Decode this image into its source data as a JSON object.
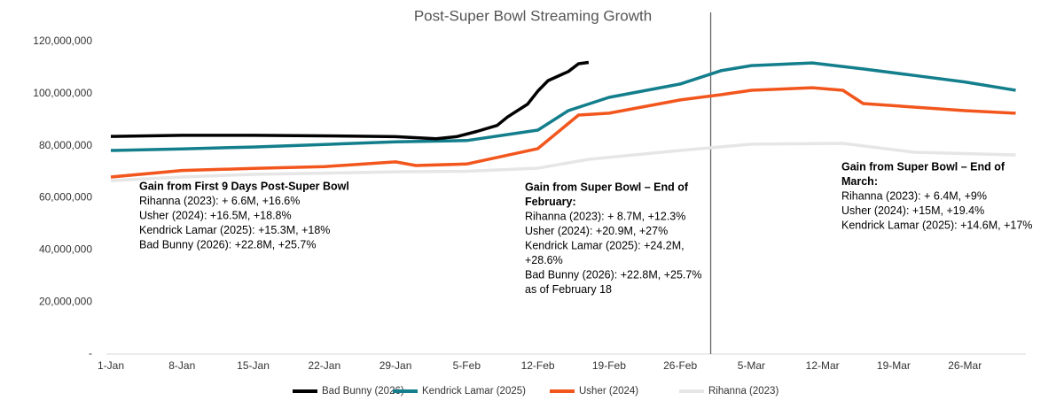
{
  "chart_data": {
    "type": "line",
    "title": "Post-Super Bowl Streaming Growth",
    "xlim": [
      1,
      91
    ],
    "xticks": [
      {
        "value": 1,
        "label": "1-Jan"
      },
      {
        "value": 8,
        "label": "8-Jan"
      },
      {
        "value": 15,
        "label": "15-Jan"
      },
      {
        "value": 22,
        "label": "22-Jan"
      },
      {
        "value": 29,
        "label": "29-Jan"
      },
      {
        "value": 36,
        "label": "5-Feb"
      },
      {
        "value": 43,
        "label": "12-Feb"
      },
      {
        "value": 50,
        "label": "19-Feb"
      },
      {
        "value": 57,
        "label": "26-Feb"
      },
      {
        "value": 64,
        "label": "5-Mar"
      },
      {
        "value": 71,
        "label": "12-Mar"
      },
      {
        "value": 78,
        "label": "19-Mar"
      },
      {
        "value": 85,
        "label": "26-Mar"
      }
    ],
    "ylim": [
      0,
      120000000
    ],
    "yticks": [
      {
        "value": 0,
        "label": "-"
      },
      {
        "value": 20000000,
        "label": "20,000,000"
      },
      {
        "value": 40000000,
        "label": "40,000,000"
      },
      {
        "value": 60000000,
        "label": "60,000,000"
      },
      {
        "value": 80000000,
        "label": "80,000,000"
      },
      {
        "value": 100000000,
        "label": "100,000,000"
      },
      {
        "value": 120000000,
        "label": "120,000,000"
      }
    ],
    "vline_x": 60,
    "series": [
      {
        "name": "Bad Bunny (2026)",
        "color": "#000000",
        "x": [
          1,
          8,
          15,
          22,
          29,
          33,
          35,
          37,
          39,
          40,
          42,
          43,
          44,
          46,
          47,
          48
        ],
        "values": [
          83600000,
          84000000,
          84000000,
          83800000,
          83500000,
          82700000,
          83500000,
          85500000,
          87800000,
          91000000,
          96000000,
          101000000,
          105000000,
          108500000,
          111500000,
          112000000
        ]
      },
      {
        "name": "Kendrick Lamar (2025)",
        "color": "#137e8c",
        "x": [
          1,
          8,
          15,
          22,
          29,
          36,
          43,
          46,
          50,
          57,
          61,
          64,
          70,
          75,
          80,
          85,
          90
        ],
        "values": [
          78200000,
          78800000,
          79500000,
          80500000,
          81500000,
          82000000,
          86000000,
          93500000,
          98600000,
          103700000,
          108800000,
          110800000,
          111800000,
          109500000,
          107000000,
          104500000,
          101300000
        ]
      },
      {
        "name": "Usher (2024)",
        "color": "#f2561d",
        "x": [
          1,
          8,
          15,
          22,
          29,
          31,
          36,
          43,
          47,
          50,
          57,
          61,
          64,
          70,
          73,
          75,
          85,
          90
        ],
        "values": [
          68000000,
          70500000,
          71300000,
          72000000,
          73800000,
          72400000,
          73000000,
          78900000,
          91800000,
          92500000,
          97600000,
          99600000,
          101300000,
          102300000,
          101300000,
          96200000,
          93500000,
          92500000
        ]
      },
      {
        "name": "Rihanna (2023)",
        "color": "#e6e6e6",
        "x": [
          1,
          8,
          15,
          22,
          29,
          36,
          43,
          48,
          57,
          64,
          73,
          80,
          90
        ],
        "values": [
          66600000,
          68000000,
          69000000,
          69500000,
          70000000,
          70200000,
          71400000,
          74800000,
          78200000,
          80600000,
          80900000,
          77500000,
          76500000
        ]
      }
    ],
    "annotations": [
      {
        "heading": [
          "Gain from First 9 Days Post-Super Bowl"
        ],
        "lines": [
          "Rihanna (2023): + 6.6M, +16.6%",
          "Usher (2024): +16.5M, +18.8%",
          "Kendrick Lamar (2025): +15.3M, +18%",
          "Bad Bunny (2026): +22.8M, +25.7%"
        ]
      },
      {
        "heading": [
          "Gain from Super Bowl – End of",
          "February:"
        ],
        "lines": [
          "Rihanna (2023): + 8.7M, +12.3%",
          "Usher (2024): +20.9M, +27%",
          "Kendrick Lamar (2025): +24.2M,",
          "+28.6%",
          "Bad Bunny (2026): +22.8M, +25.7%",
          "as of February 18"
        ]
      },
      {
        "heading": [
          "Gain from Super Bowl – End of",
          "March:"
        ],
        "lines": [
          "Rihanna (2023): + 6.4M, +9%",
          "Usher (2024): +15M, +19.4%",
          "Kendrick Lamar (2025): +14.6M, +17%"
        ]
      }
    ]
  }
}
